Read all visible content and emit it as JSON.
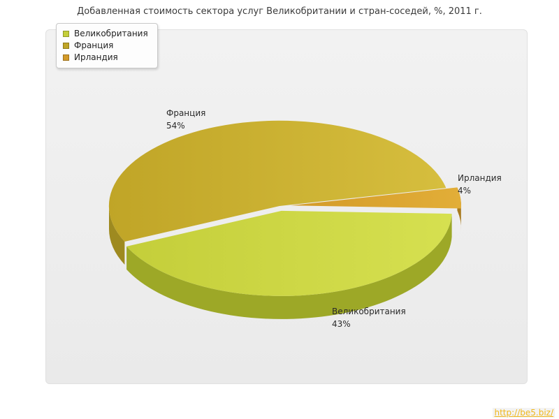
{
  "title": "Добавленная стоимость сектора услуг Великобритании и стран-соседей, %, 2011 г.",
  "watermark": {
    "text": "http://be5.biz/",
    "color": "#f0b81e"
  },
  "chart_data": {
    "type": "pie",
    "title": "Добавленная стоимость сектора услуг Великобритании и стран-соседей, %, 2011 г.",
    "unit": "%",
    "effect_3d": true,
    "legend_position": "top-left",
    "slices": [
      {
        "label": "Великобритания",
        "value": 43,
        "pct_label": "43%",
        "color": "#c4ce3a",
        "light": "#d6e050",
        "dark": "#9da827",
        "exploded": true
      },
      {
        "label": "Франция",
        "value": 54,
        "pct_label": "54%",
        "color": "#c0a527",
        "light": "#d6be3e",
        "dark": "#9e8a20",
        "exploded": false
      },
      {
        "label": "Ирландия",
        "value": 4,
        "pct_label": "4%",
        "color": "#d39a28",
        "light": "#e2ae38",
        "dark": "#a87a1e",
        "exploded": true
      }
    ]
  }
}
